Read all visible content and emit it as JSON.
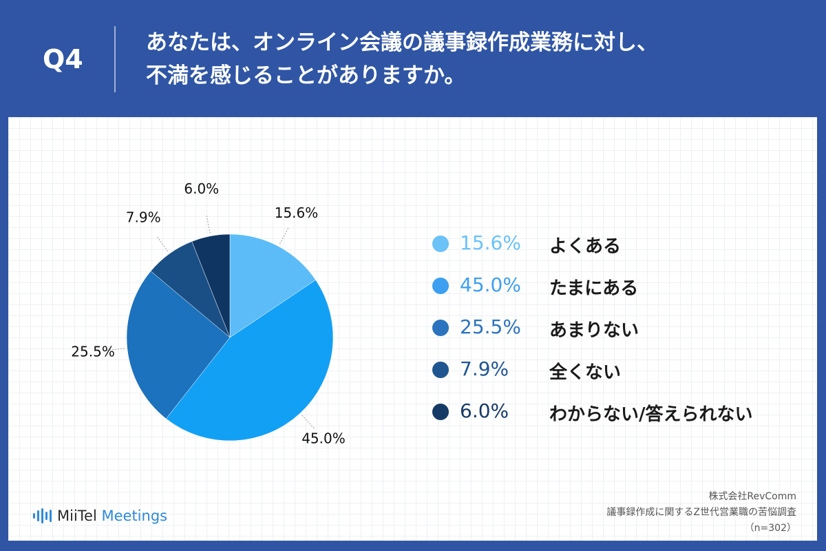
{
  "header": {
    "question_no": "Q4",
    "title_line1": "あなたは、オンライン会議の議事録作成業務に対し、",
    "title_line2": "不満を感じることがありますか。"
  },
  "chart_data": {
    "type": "pie",
    "categories": [
      "よくある",
      "たまにある",
      "あまりない",
      "全くない",
      "わからない/答えられない"
    ],
    "values": [
      15.6,
      45.0,
      25.5,
      7.9,
      6.0
    ],
    "value_labels": [
      "15.6%",
      "45.0%",
      "25.5%",
      "7.9%",
      "6.0%"
    ],
    "colors": [
      "#5bbcf8",
      "#12a0f5",
      "#1c72bd",
      "#1a4f86",
      "#0f3562"
    ],
    "legend_colors": [
      "#6ac2f7",
      "#3d9ff0",
      "#2b73be",
      "#1f568f",
      "#163a66"
    ],
    "start_angle": 0,
    "direction": "clockwise",
    "legend_position": "right",
    "title": ""
  },
  "brand": {
    "logo_part1": "MiiTel",
    "logo_part2": " Meetings"
  },
  "source": {
    "line1": "株式会社RevComm",
    "line2": "議事録作成に関するZ世代営業職の苦悩調査",
    "line3": "（n=302）"
  }
}
